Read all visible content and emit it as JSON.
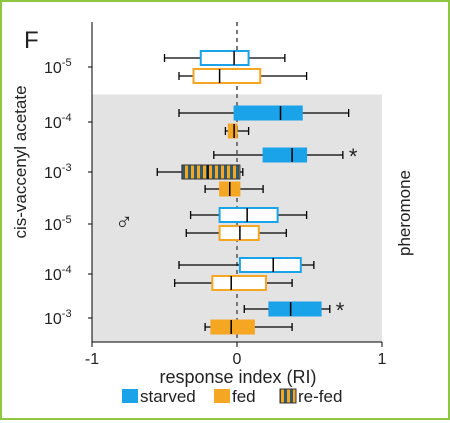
{
  "chart_data": {
    "type": "box",
    "panel_label": "F",
    "xlabel": "response index (RI)",
    "ylabel": "cis-vaccenyl acetate",
    "right_label": "pheromone",
    "male_symbol": "♂",
    "xlim": [
      -1,
      1
    ],
    "x_ticks": [
      "-1",
      "0",
      "1"
    ],
    "zero_reference_line": true,
    "colors": {
      "starved": "#1aa3e8",
      "fed": "#f5a623",
      "refed_fill": "#f5a623",
      "refed_stripe": "#2e5a6e",
      "shade": "#e3e3e3",
      "border": "#8dc63f"
    },
    "legend": [
      {
        "label": "starved",
        "swatch": "starved"
      },
      {
        "label": "fed",
        "swatch": "fed"
      },
      {
        "label": "re-fed",
        "swatch": "refed"
      }
    ],
    "concentration_labels": [
      {
        "base": "10",
        "exp": "-5"
      },
      {
        "base": "10",
        "exp": "-4"
      },
      {
        "base": "10",
        "exp": "-3"
      },
      {
        "base": "10",
        "exp": "-5"
      },
      {
        "base": "10",
        "exp": "-4"
      },
      {
        "base": "10",
        "exp": "-3"
      }
    ],
    "groups": [
      {
        "concentration": "10^-5",
        "shaded": false,
        "boxes": [
          {
            "condition": "starved",
            "style": "outline",
            "min": -0.5,
            "q1": -0.25,
            "median": -0.02,
            "q3": 0.08,
            "max": 0.33
          },
          {
            "condition": "fed",
            "style": "outline",
            "min": -0.4,
            "q1": -0.3,
            "median": -0.12,
            "q3": 0.16,
            "max": 0.48
          }
        ]
      },
      {
        "concentration": "10^-4",
        "shaded": true,
        "boxes": [
          {
            "condition": "starved",
            "style": "filled",
            "min": -0.4,
            "q1": -0.02,
            "median": 0.3,
            "q3": 0.45,
            "max": 0.77
          },
          {
            "condition": "fed",
            "style": "filled",
            "min": -0.08,
            "q1": -0.06,
            "median": -0.02,
            "q3": 0.0,
            "max": 0.08
          }
        ]
      },
      {
        "concentration": "10^-3",
        "shaded": true,
        "boxes": [
          {
            "condition": "starved",
            "style": "filled",
            "min": -0.16,
            "q1": 0.18,
            "median": 0.38,
            "q3": 0.48,
            "max": 0.73,
            "significance": "*"
          },
          {
            "condition": "re-fed",
            "style": "hatched",
            "min": -0.55,
            "q1": -0.38,
            "median": -0.2,
            "q3": 0.02,
            "max": 0.04
          },
          {
            "condition": "fed",
            "style": "filled",
            "min": -0.22,
            "q1": -0.12,
            "median": -0.05,
            "q3": 0.02,
            "max": 0.18
          }
        ]
      },
      {
        "concentration": "10^-5",
        "shaded": true,
        "boxes": [
          {
            "condition": "starved",
            "style": "outline",
            "min": -0.32,
            "q1": -0.12,
            "median": 0.07,
            "q3": 0.28,
            "max": 0.48
          },
          {
            "condition": "fed",
            "style": "outline",
            "min": -0.35,
            "q1": -0.12,
            "median": 0.02,
            "q3": 0.15,
            "max": 0.34
          }
        ]
      },
      {
        "concentration": "10^-4",
        "shaded": true,
        "boxes": [
          {
            "condition": "starved",
            "style": "outline",
            "min": -0.4,
            "q1": 0.02,
            "median": 0.25,
            "q3": 0.44,
            "max": 0.53
          },
          {
            "condition": "fed",
            "style": "outline",
            "min": -0.43,
            "q1": -0.17,
            "median": -0.04,
            "q3": 0.2,
            "max": 0.38
          }
        ]
      },
      {
        "concentration": "10^-3",
        "shaded": true,
        "boxes": [
          {
            "condition": "starved",
            "style": "filled",
            "min": 0.05,
            "q1": 0.22,
            "median": 0.37,
            "q3": 0.58,
            "max": 0.64,
            "significance": "*"
          },
          {
            "condition": "fed",
            "style": "filled",
            "min": -0.22,
            "q1": -0.18,
            "median": -0.04,
            "q3": 0.12,
            "max": 0.38
          }
        ]
      }
    ]
  }
}
